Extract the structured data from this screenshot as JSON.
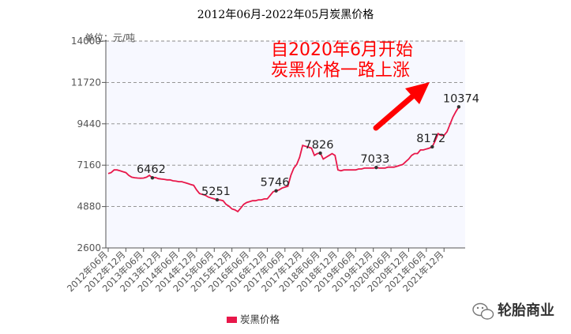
{
  "chart_data": {
    "type": "line",
    "title": "2012年06月-2022年05月炭黑价格",
    "unit_label": "单位：元/吨",
    "ylim": [
      2600,
      14000
    ],
    "y_ticks": [
      "14000",
      "11720",
      "9440",
      "7160",
      "4880",
      "2600"
    ],
    "x_ticks": [
      "2012年06月",
      "2012年12月",
      "2013年06月",
      "2013年12月",
      "2014年06月",
      "2014年12月",
      "2015年06月",
      "2015年12月",
      "2016年06月",
      "2016年12月",
      "2017年06月",
      "2017年12月",
      "2018年06月",
      "2018年12月",
      "2019年06月",
      "2019年12月",
      "2020年06月",
      "2020年12月",
      "2021年06月",
      "2021年12月"
    ],
    "grid": "horizontal dashed",
    "legend_position": "bottom",
    "annotation_lines": [
      "自2020年6月开始",
      "炭黑价格一路上涨"
    ],
    "series": [
      {
        "name": "炭黑价格",
        "color": "#e8174a",
        "points": [
          [
            0,
            6700
          ],
          [
            1,
            6750
          ],
          [
            2,
            6900
          ],
          [
            3,
            6900
          ],
          [
            4,
            6850
          ],
          [
            5,
            6800
          ],
          [
            6,
            6750
          ],
          [
            7,
            6600
          ],
          [
            8,
            6500
          ],
          [
            9,
            6470
          ],
          [
            10,
            6450
          ],
          [
            11,
            6440
          ],
          [
            12,
            6450
          ],
          [
            13,
            6500
          ],
          [
            14,
            6600
          ],
          [
            15,
            6462
          ],
          [
            16,
            6480
          ],
          [
            17,
            6420
          ],
          [
            18,
            6400
          ],
          [
            19,
            6380
          ],
          [
            20,
            6350
          ],
          [
            21,
            6350
          ],
          [
            22,
            6300
          ],
          [
            23,
            6280
          ],
          [
            24,
            6250
          ],
          [
            25,
            6250
          ],
          [
            26,
            6200
          ],
          [
            27,
            6150
          ],
          [
            28,
            6100
          ],
          [
            29,
            6050
          ],
          [
            30,
            5800
          ],
          [
            31,
            5600
          ],
          [
            32,
            5550
          ],
          [
            33,
            5500
          ],
          [
            34,
            5400
          ],
          [
            35,
            5350
          ],
          [
            36,
            5300
          ],
          [
            37,
            5251
          ],
          [
            38,
            5240
          ],
          [
            39,
            5200
          ],
          [
            40,
            5000
          ],
          [
            41,
            4900
          ],
          [
            42,
            4750
          ],
          [
            43,
            4700
          ],
          [
            44,
            4600
          ],
          [
            45,
            4800
          ],
          [
            46,
            5000
          ],
          [
            47,
            5100
          ],
          [
            48,
            5150
          ],
          [
            49,
            5200
          ],
          [
            50,
            5200
          ],
          [
            51,
            5250
          ],
          [
            52,
            5250
          ],
          [
            53,
            5300
          ],
          [
            54,
            5300
          ],
          [
            55,
            5500
          ],
          [
            56,
            5700
          ],
          [
            57,
            5746
          ],
          [
            58,
            5800
          ],
          [
            59,
            5900
          ],
          [
            60,
            5950
          ],
          [
            61,
            6000
          ],
          [
            62,
            6600
          ],
          [
            63,
            7000
          ],
          [
            64,
            7200
          ],
          [
            65,
            7600
          ],
          [
            66,
            8250
          ],
          [
            67,
            8200
          ],
          [
            68,
            8150
          ],
          [
            69,
            8100
          ],
          [
            70,
            7700
          ],
          [
            71,
            7800
          ],
          [
            72,
            7826
          ],
          [
            73,
            7500
          ],
          [
            74,
            7600
          ],
          [
            75,
            7700
          ],
          [
            76,
            7800
          ],
          [
            77,
            7700
          ],
          [
            78,
            6900
          ],
          [
            79,
            6850
          ],
          [
            80,
            6900
          ],
          [
            81,
            6900
          ],
          [
            82,
            6900
          ],
          [
            83,
            6900
          ],
          [
            84,
            6900
          ],
          [
            85,
            6950
          ],
          [
            86,
            6950
          ],
          [
            87,
            7000
          ],
          [
            88,
            7000
          ],
          [
            89,
            7000
          ],
          [
            90,
            7000
          ],
          [
            91,
            7033
          ],
          [
            92,
            7000
          ],
          [
            93,
            7000
          ],
          [
            94,
            7000
          ],
          [
            95,
            7050
          ],
          [
            96,
            7050
          ],
          [
            97,
            7050
          ],
          [
            98,
            7100
          ],
          [
            99,
            7150
          ],
          [
            100,
            7200
          ],
          [
            101,
            7350
          ],
          [
            102,
            7500
          ],
          [
            103,
            7700
          ],
          [
            104,
            7800
          ],
          [
            105,
            7800
          ],
          [
            106,
            8000
          ],
          [
            107,
            8000
          ],
          [
            108,
            8050
          ],
          [
            109,
            8100
          ],
          [
            110,
            8172
          ],
          [
            111,
            8500
          ],
          [
            112,
            8900
          ],
          [
            113,
            8800
          ],
          [
            114,
            8800
          ],
          [
            115,
            9000
          ],
          [
            116,
            9400
          ],
          [
            117,
            9800
          ],
          [
            118,
            10100
          ],
          [
            119,
            10374
          ]
        ],
        "labeled_points": [
          {
            "x": 15,
            "label": "6462"
          },
          {
            "x": 37,
            "label": "5251"
          },
          {
            "x": 57,
            "label": "5746"
          },
          {
            "x": 72,
            "label": "7826"
          },
          {
            "x": 91,
            "label": "7033"
          },
          {
            "x": 110,
            "label": "8172"
          },
          {
            "x": 119,
            "label": "10374"
          }
        ]
      }
    ]
  },
  "watermark": {
    "text": "轮胎商业",
    "icon": "wechat-icon"
  },
  "colors": {
    "plot_bg": "#f7f8ff",
    "grid": "#888888",
    "axis": "#555555",
    "line": "#e8174a",
    "annotation": "#ff0000"
  }
}
